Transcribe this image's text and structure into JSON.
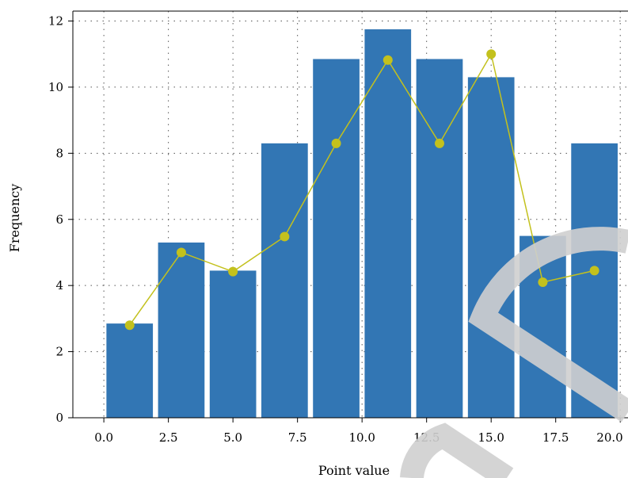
{
  "chart_data": {
    "type": "bar",
    "xlabel": "Point value",
    "ylabel": "Frequency",
    "xlim": [
      -1.2,
      20.3
    ],
    "ylim": [
      0,
      12.3
    ],
    "xticks": [
      0,
      2.5,
      5,
      7.5,
      10,
      12.5,
      15,
      17.5,
      20
    ],
    "xtick_labels": [
      "0.0",
      "2.5",
      "5.0",
      "7.5",
      "10.0",
      "12.5",
      "15.0",
      "17.5",
      "20.0"
    ],
    "yticks": [
      0,
      2,
      4,
      6,
      8,
      10,
      12
    ],
    "ytick_labels": [
      "0",
      "2",
      "4",
      "6",
      "8",
      "10",
      "12"
    ],
    "grid": true,
    "bar_width": 1.8,
    "bar_color": "#3276b4",
    "line_color": "#c3c11d",
    "bars": {
      "x": [
        1,
        3,
        5,
        7,
        9,
        11,
        13,
        15,
        17,
        19
      ],
      "values": [
        2.85,
        5.3,
        4.45,
        8.3,
        10.85,
        11.75,
        10.85,
        10.3,
        5.5,
        8.3
      ]
    },
    "line": {
      "x": [
        1,
        3,
        5,
        7,
        9,
        11,
        13,
        15,
        17,
        19
      ],
      "values": [
        2.8,
        5.0,
        4.42,
        5.48,
        8.3,
        10.82,
        8.3,
        11.0,
        4.1,
        4.45
      ]
    }
  }
}
